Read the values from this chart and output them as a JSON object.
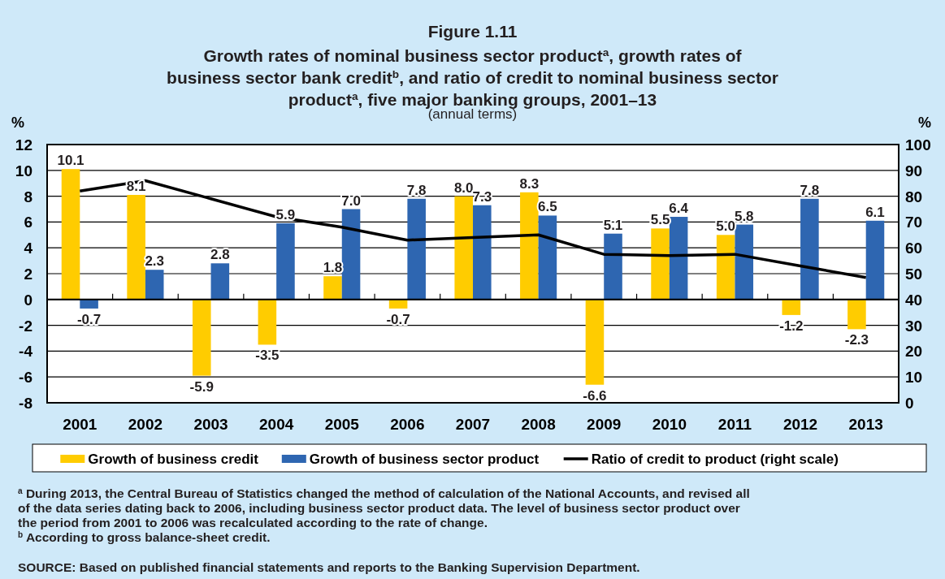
{
  "chart_data": {
    "type": "bar",
    "title": "Figure 1.11",
    "subtitle": "Growth rates of nominal business sector product$^{a}$, growth rates of\nbusiness sector bank credit$^{b}$, and ratio of credit to nominal business sector\nproduct$^{a}$, five major banking groups, 2001–13",
    "ylabel": "%",
    "y2label": "%",
    "categories": [
      "2001",
      "2002",
      "2003",
      "2004",
      "2005",
      "2006",
      "2007",
      "2008",
      "2009",
      "2010",
      "2011",
      "2012",
      "2013"
    ],
    "series": [
      {
        "name": "Growth of business credit",
        "color": "#ffcc00",
        "values": [
          10.1,
          8.1,
          -5.9,
          -3.5,
          1.8,
          -0.7,
          8.0,
          8.3,
          -6.6,
          5.5,
          5.0,
          -1.2,
          -2.3
        ],
        "value_labels": [
          "10.1",
          "8.1",
          "-5.9",
          "-3.5",
          "1.8",
          "-0.7",
          "8.0",
          "8.3",
          "-6.6",
          "5.5",
          "5.0",
          "-1.2",
          "-2.3"
        ]
      },
      {
        "name": "Growth of business sector product",
        "color": "#2e66b1",
        "values": [
          -0.7,
          2.3,
          2.8,
          5.9,
          7.0,
          7.8,
          7.3,
          6.5,
          5.1,
          6.4,
          5.8,
          7.8,
          6.1
        ],
        "value_labels": [
          "-0.7",
          "2.3",
          "2.8",
          "5.9",
          "7.0",
          "7.8",
          "7.3",
          "6.5",
          "5.1",
          "6.4",
          "5.8",
          "7.8",
          "6.1"
        ]
      },
      {
        "name": "Ratio of credit to product (right scale)",
        "type": "line",
        "axis": "y2",
        "color": "#000000",
        "values": [
          82,
          86,
          79,
          72,
          68,
          63,
          64,
          65,
          57.5,
          57,
          57.5,
          53,
          48.5
        ]
      }
    ],
    "ylim": [
      -8,
      12
    ],
    "yticks": [
      -8,
      -6,
      -4,
      -2,
      0,
      2,
      4,
      6,
      8,
      10,
      12
    ],
    "y2lim": [
      0,
      100
    ],
    "y2ticks": [
      0,
      10,
      20,
      30,
      40,
      50,
      60,
      70,
      80,
      90,
      100
    ],
    "grid": "y",
    "legend": "bottom",
    "marker": "none",
    "line_style": "solid",
    "annotations": [
      "(annual terms)",
      "$^{a}$ During 2013, the Central Bureau of Statistics changed the method of calculation of the National Accounts, and revised all\nof the data series dating back to 2006, including business sector product data.  The level of business sector product over\nthe period from 2001 to 2006 was recalculated according to the rate of change.",
      "$^{b}$ According to gross balance-sheet credit.",
      "SOURCE: Based on published financial statements and reports to the Banking Supervision Department."
    ]
  }
}
